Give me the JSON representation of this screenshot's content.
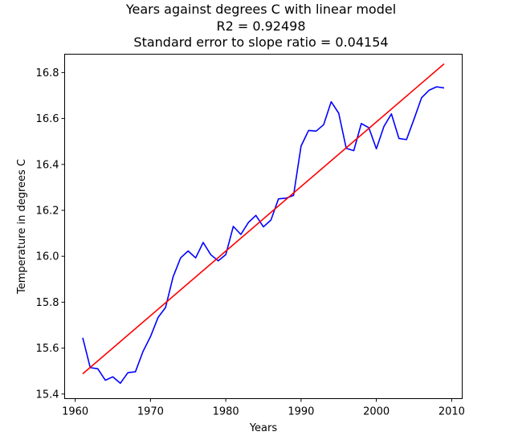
{
  "chart_data": {
    "type": "line",
    "title_lines": [
      "Years against degrees C with linear model",
      "R2 = 0.92498",
      "Standard error to slope ratio = 0.04154"
    ],
    "xlabel": "Years",
    "ylabel": "Temperature in degrees C",
    "xlim": [
      1958.6,
      2011.4
    ],
    "ylim": [
      15.38,
      16.88
    ],
    "xticks": [
      "1960",
      "1970",
      "1980",
      "1990",
      "2000",
      "2010"
    ],
    "yticks": [
      "15.4",
      "15.6",
      "15.8",
      "16.0",
      "16.2",
      "16.4",
      "16.6",
      "16.8"
    ],
    "grid": false,
    "legend": "none",
    "x": [
      1961,
      1962,
      1963,
      1964,
      1965,
      1966,
      1967,
      1968,
      1969,
      1970,
      1971,
      1972,
      1973,
      1974,
      1975,
      1976,
      1977,
      1978,
      1979,
      1980,
      1981,
      1982,
      1983,
      1984,
      1985,
      1986,
      1987,
      1988,
      1989,
      1990,
      1991,
      1992,
      1993,
      1994,
      1995,
      1996,
      1997,
      1998,
      1999,
      2000,
      2001,
      2002,
      2003,
      2004,
      2005,
      2006,
      2007,
      2008,
      2009
    ],
    "series": [
      {
        "color": "#0000ff",
        "values": [
          15.645,
          15.515,
          15.51,
          15.46,
          15.475,
          15.447,
          15.493,
          15.497,
          15.585,
          15.65,
          15.733,
          15.777,
          15.91,
          15.993,
          16.023,
          15.993,
          16.06,
          16.007,
          15.98,
          16.007,
          16.13,
          16.095,
          16.147,
          16.178,
          16.128,
          16.158,
          16.25,
          16.253,
          16.265,
          16.48,
          16.548,
          16.545,
          16.573,
          16.673,
          16.623,
          16.47,
          16.46,
          16.578,
          16.56,
          16.468,
          16.565,
          16.62,
          16.513,
          16.508,
          16.597,
          16.69,
          16.723,
          16.738,
          16.733
        ]
      },
      {
        "color": "#ff0000",
        "model": "linear",
        "x": [
          1961,
          2009
        ],
        "values": [
          15.488,
          16.838
        ]
      }
    ]
  }
}
